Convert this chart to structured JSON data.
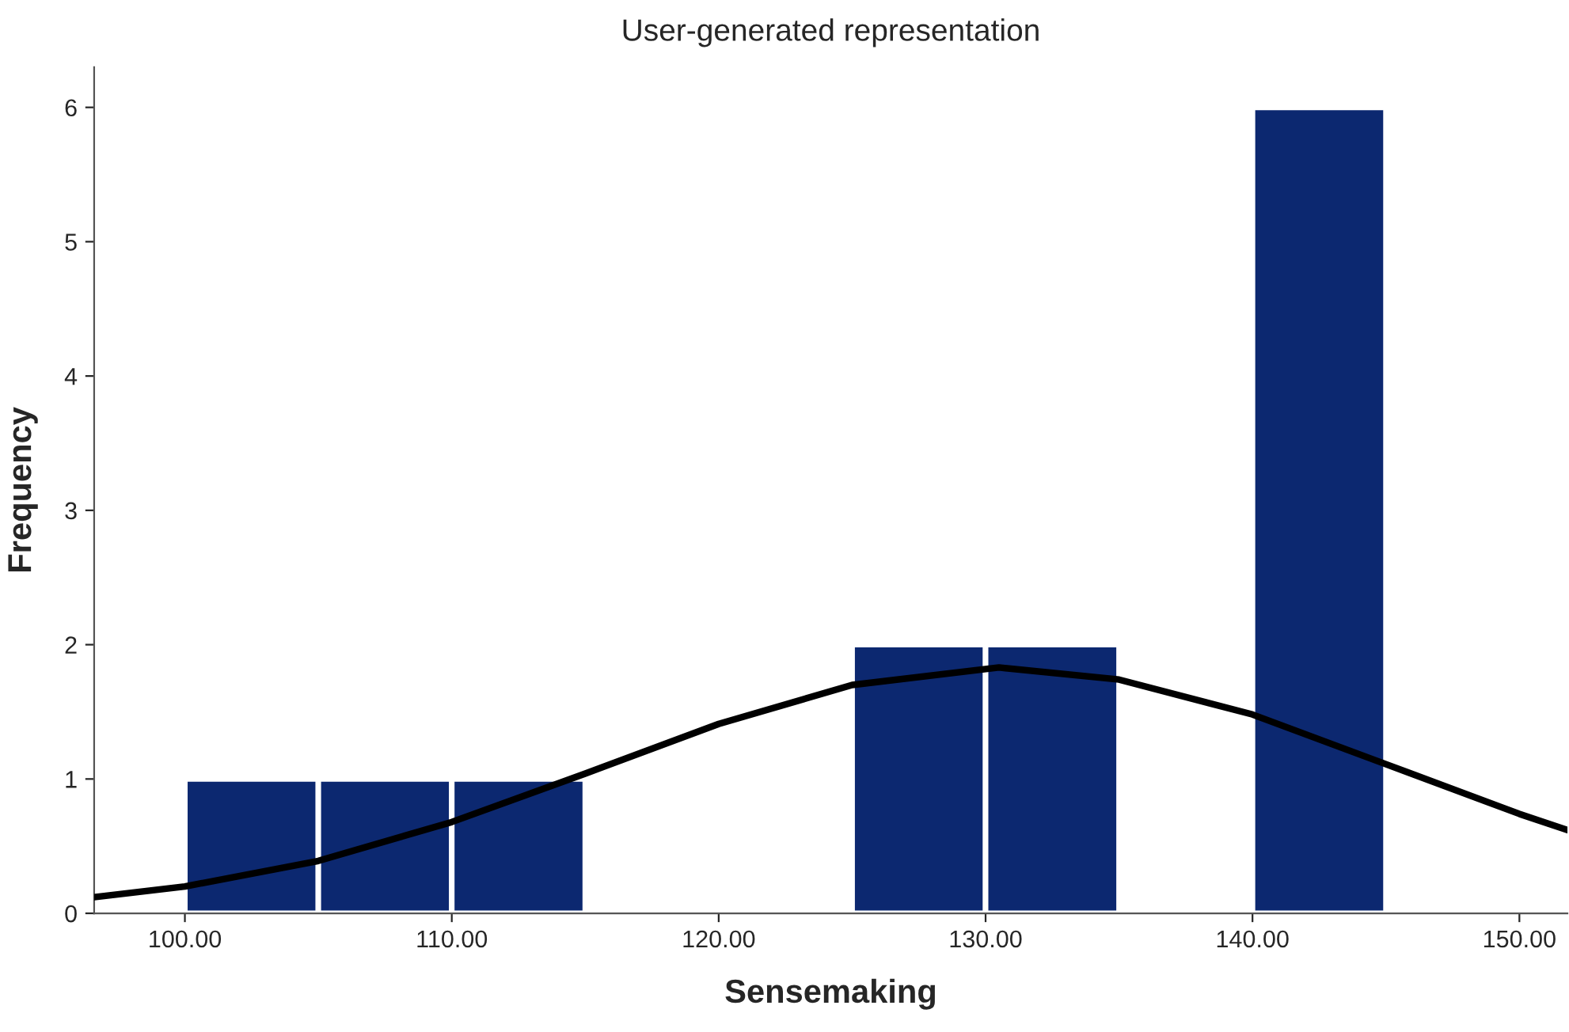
{
  "chart_data": {
    "type": "histogram",
    "title": "User-generated representation",
    "xlabel": "Sensemaking",
    "ylabel": "Frequency",
    "series": [
      {
        "color": "#0c2870",
        "bins": [
          100,
          105,
          110,
          115,
          120,
          125,
          130,
          135,
          140,
          145
        ],
        "values": [
          1,
          1,
          1,
          0,
          0,
          2,
          2,
          0,
          6
        ]
      },
      {
        "type": "line",
        "color": "#000000",
        "x": [
          96.6,
          100,
          105,
          110,
          115,
          120,
          125,
          130.5,
          135,
          140,
          145,
          150,
          151.8
        ],
        "values": [
          0.12,
          0.2,
          0.39,
          0.68,
          1.04,
          1.41,
          1.7,
          1.83,
          1.74,
          1.48,
          1.11,
          0.74,
          0.62
        ]
      }
    ],
    "xlim": [
      96.6,
      151.8
    ],
    "xticks": [
      {
        "value": 100,
        "label": "100.00"
      },
      {
        "value": 110,
        "label": "110.00"
      },
      {
        "value": 120,
        "label": "120.00"
      },
      {
        "value": 130,
        "label": "130.00"
      },
      {
        "value": 140,
        "label": "140.00"
      },
      {
        "value": 150,
        "label": "150.00"
      }
    ],
    "ylim": [
      0,
      6.3
    ],
    "yticks": [
      0,
      1,
      2,
      3,
      4,
      5,
      6
    ],
    "grid": false,
    "legend": false,
    "marker": "none",
    "line_style": "solid"
  }
}
